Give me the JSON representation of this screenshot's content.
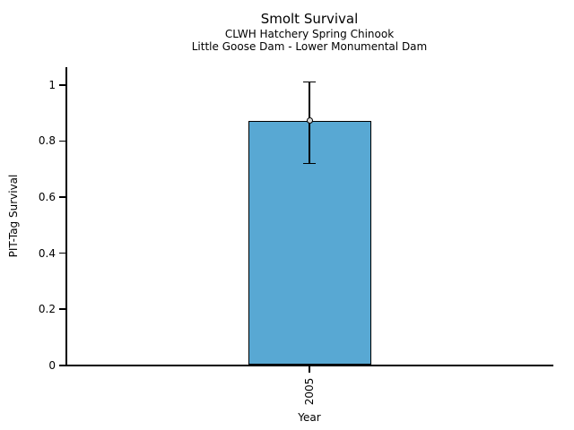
{
  "chart_data": {
    "type": "bar",
    "title": "Smolt Survival",
    "subtitle1": "CLWH Hatchery Spring Chinook",
    "subtitle2": "Little Goose Dam - Lower Monumental Dam",
    "xlabel": "Year",
    "ylabel": "PIT-Tag Survival",
    "categories": [
      "2005"
    ],
    "values": [
      0.87
    ],
    "error_low": [
      0.72
    ],
    "error_high": [
      1.01
    ],
    "ylim": [
      0,
      1.06
    ],
    "yticks": [
      0,
      0.2,
      0.4,
      0.6,
      0.8,
      1
    ],
    "ytick_labels": [
      "0",
      "0.2",
      "0.4",
      "0.6",
      "0.8",
      "1"
    ],
    "grid": false,
    "legend": "none",
    "marker": "open-circle",
    "bar_color": "#58a8d3",
    "axis_color": "#000000",
    "background_color": "#ffffff"
  }
}
